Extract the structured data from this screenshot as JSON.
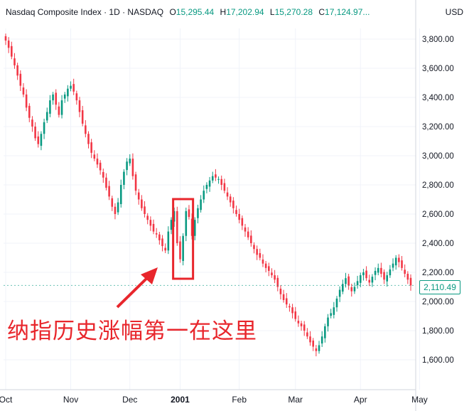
{
  "header": {
    "symbol": "Nasdaq Composite Index · 1D · NASDAQ",
    "o_label": "O",
    "o_value": "15,295.44",
    "h_label": "H",
    "h_value": "17,202.94",
    "l_label": "L",
    "l_value": "15,270.28",
    "c_label": "C",
    "c_value": "17,124.97..."
  },
  "currency": "USD",
  "last_price_label": "2,110.49",
  "annotation_text": "纳指历史涨幅第一在这里",
  "colors": {
    "up": "#089981",
    "down": "#f23645",
    "grid": "#f0f3fa",
    "annotation": "#e8262c"
  },
  "chart_data": {
    "type": "candlestick",
    "title": "",
    "xlabel": "",
    "ylabel": "",
    "ylim": [
      1520,
      3920
    ],
    "y_ticks": [
      1600,
      1800,
      2000,
      2200,
      2400,
      2600,
      2800,
      3000,
      3200,
      3400,
      3600,
      3800
    ],
    "y_tick_labels": [
      "1,600.00",
      "1,800.00",
      "2,000.00",
      "2,200.00",
      "2,400.00",
      "2,600.00",
      "2,800.00",
      "3,000.00",
      "3,200.00",
      "3,400.00",
      "3,600.00",
      "3,800.00"
    ],
    "x_ticks": [
      "Oct",
      "Nov",
      "Dec",
      "2001",
      "Feb",
      "Mar",
      "Apr",
      "May"
    ],
    "x_tick_positions": [
      0,
      22,
      42,
      59,
      79,
      98,
      120,
      140
    ],
    "last_price": 2110.49,
    "grid": true,
    "closes": [
      3790,
      3740,
      3680,
      3620,
      3550,
      3480,
      3420,
      3330,
      3260,
      3200,
      3120,
      3080,
      3150,
      3230,
      3300,
      3380,
      3420,
      3350,
      3280,
      3380,
      3420,
      3460,
      3480,
      3440,
      3380,
      3300,
      3220,
      3150,
      3080,
      3020,
      2980,
      2940,
      2900,
      2850,
      2780,
      2720,
      2650,
      2600,
      2680,
      2800,
      2890,
      2960,
      2980,
      2860,
      2760,
      2700,
      2640,
      2600,
      2560,
      2520,
      2480,
      2460,
      2420,
      2380,
      2350,
      2480,
      2560,
      2620,
      2400,
      2290,
      2450,
      2620,
      2580,
      2450,
      2560,
      2640,
      2700,
      2760,
      2800,
      2830,
      2860,
      2850,
      2840,
      2800,
      2760,
      2720,
      2680,
      2640,
      2600,
      2560,
      2520,
      2480,
      2440,
      2400,
      2360,
      2320,
      2300,
      2260,
      2230,
      2210,
      2180,
      2150,
      2100,
      2050,
      2010,
      1980,
      1960,
      1920,
      1880,
      1850,
      1830,
      1800,
      1760,
      1720,
      1690,
      1660,
      1700,
      1760,
      1830,
      1890,
      1920,
      1960,
      2020,
      2080,
      2120,
      2160,
      2110,
      2070,
      2100,
      2140,
      2180,
      2200,
      2160,
      2130,
      2170,
      2210,
      2230,
      2190,
      2150,
      2180,
      2220,
      2260,
      2300,
      2270,
      2230,
      2190,
      2150,
      2110
    ]
  }
}
